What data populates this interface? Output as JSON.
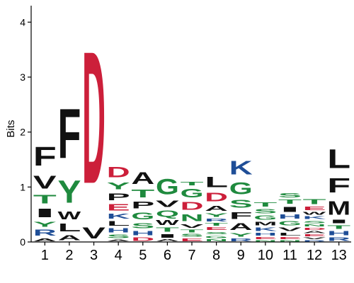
{
  "chart_data": {
    "type": "sequence-logo",
    "ylabel": "Bits",
    "ylim": [
      0,
      4.3
    ],
    "yticks": [
      "0",
      "1",
      "2",
      "3",
      "4"
    ],
    "colors": {
      "acidic": "#cc1f3a",
      "polar": "#1f8a3e",
      "basic": "#1f4e97",
      "hydrophobic": "#111111"
    },
    "color_groups": {
      "D": "acidic",
      "E": "acidic",
      "S": "polar",
      "T": "polar",
      "G": "polar",
      "Y": "polar",
      "C": "polar",
      "Q": "polar",
      "N": "polar",
      "K": "basic",
      "R": "basic",
      "H": "basic",
      "A": "hydrophobic",
      "V": "hydrophobic",
      "L": "hydrophobic",
      "I": "hydrophobic",
      "P": "hydrophobic",
      "W": "hydrophobic",
      "F": "hydrophobic",
      "M": "hydrophobic"
    },
    "positions": [
      {
        "label": "1",
        "stack": [
          [
            "A",
            0.08
          ],
          [
            "R",
            0.17
          ],
          [
            "Y",
            0.15
          ],
          [
            "I",
            0.25
          ],
          [
            "T",
            0.25
          ],
          [
            "V",
            0.38
          ],
          [
            "F",
            0.55
          ]
        ]
      },
      {
        "label": "2",
        "stack": [
          [
            "A",
            0.15
          ],
          [
            "L",
            0.22
          ],
          [
            "W",
            0.22
          ],
          [
            "Y",
            0.65
          ],
          [
            "F",
            1.45
          ]
        ]
      },
      {
        "label": "3",
        "stack": [
          [
            "V",
            0.32
          ],
          [
            "D",
            3.85
          ]
        ]
      },
      {
        "label": "4",
        "stack": [
          [
            "A",
            0.05
          ],
          [
            "S",
            0.1
          ],
          [
            "H",
            0.12
          ],
          [
            "L",
            0.13
          ],
          [
            "K",
            0.14
          ],
          [
            "E",
            0.18
          ],
          [
            "P",
            0.2
          ],
          [
            "Y",
            0.2
          ],
          [
            "D",
            0.3
          ]
        ]
      },
      {
        "label": "5",
        "stack": [
          [
            "D",
            0.1
          ],
          [
            "H",
            0.12
          ],
          [
            "S",
            0.15
          ],
          [
            "G",
            0.2
          ],
          [
            "P",
            0.2
          ],
          [
            "T",
            0.22
          ],
          [
            "A",
            0.35
          ]
        ]
      },
      {
        "label": "6",
        "stack": [
          [
            "A",
            0.06
          ],
          [
            "I",
            0.1
          ],
          [
            "T",
            0.12
          ],
          [
            "W",
            0.14
          ],
          [
            "Q",
            0.18
          ],
          [
            "V",
            0.18
          ],
          [
            "G",
            0.45
          ]
        ]
      },
      {
        "label": "7",
        "stack": [
          [
            "E",
            0.08
          ],
          [
            "S",
            0.08
          ],
          [
            "T",
            0.08
          ],
          [
            "V",
            0.1
          ],
          [
            "N",
            0.2
          ],
          [
            "D",
            0.22
          ],
          [
            "G",
            0.25
          ],
          [
            "T",
            0.1
          ]
        ]
      },
      {
        "label": "8",
        "stack": [
          [
            "N",
            0.06
          ],
          [
            "G",
            0.07
          ],
          [
            "S",
            0.07
          ],
          [
            "E",
            0.08
          ],
          [
            "T",
            0.08
          ],
          [
            "R",
            0.08
          ],
          [
            "Y",
            0.1
          ],
          [
            "A",
            0.15
          ],
          [
            "D",
            0.25
          ],
          [
            "L",
            0.3
          ]
        ]
      },
      {
        "label": "9",
        "stack": [
          [
            "R",
            0.08
          ],
          [
            "Y",
            0.1
          ],
          [
            "A",
            0.2
          ],
          [
            "F",
            0.2
          ],
          [
            "S",
            0.22
          ],
          [
            "G",
            0.35
          ],
          [
            "K",
            0.4
          ]
        ]
      },
      {
        "label": "10",
        "stack": [
          [
            "N",
            0.04
          ],
          [
            "E",
            0.06
          ],
          [
            "H",
            0.08
          ],
          [
            "K",
            0.1
          ],
          [
            "M",
            0.1
          ],
          [
            "G",
            0.12
          ],
          [
            "S",
            0.12
          ],
          [
            "T",
            0.12
          ]
        ]
      },
      {
        "label": "11",
        "stack": [
          [
            "N",
            0.04
          ],
          [
            "E",
            0.06
          ],
          [
            "L",
            0.08
          ],
          [
            "V",
            0.1
          ],
          [
            "G",
            0.12
          ],
          [
            "H",
            0.12
          ],
          [
            "I",
            0.15
          ],
          [
            "T",
            0.12
          ],
          [
            "S",
            0.12
          ]
        ]
      },
      {
        "label": "12",
        "stack": [
          [
            "R",
            0.04
          ],
          [
            "V",
            0.05
          ],
          [
            "E",
            0.06
          ],
          [
            "A",
            0.06
          ],
          [
            "D",
            0.06
          ],
          [
            "N",
            0.06
          ],
          [
            "S",
            0.07
          ],
          [
            "K",
            0.08
          ],
          [
            "W",
            0.08
          ],
          [
            "E",
            0.1
          ],
          [
            "T",
            0.15
          ]
        ]
      },
      {
        "label": "13",
        "stack": [
          [
            "R",
            0.1
          ],
          [
            "H",
            0.12
          ],
          [
            "T",
            0.1
          ],
          [
            "I",
            0.1
          ],
          [
            "M",
            0.4
          ],
          [
            "F",
            0.42
          ],
          [
            "L",
            0.55
          ]
        ]
      }
    ]
  }
}
